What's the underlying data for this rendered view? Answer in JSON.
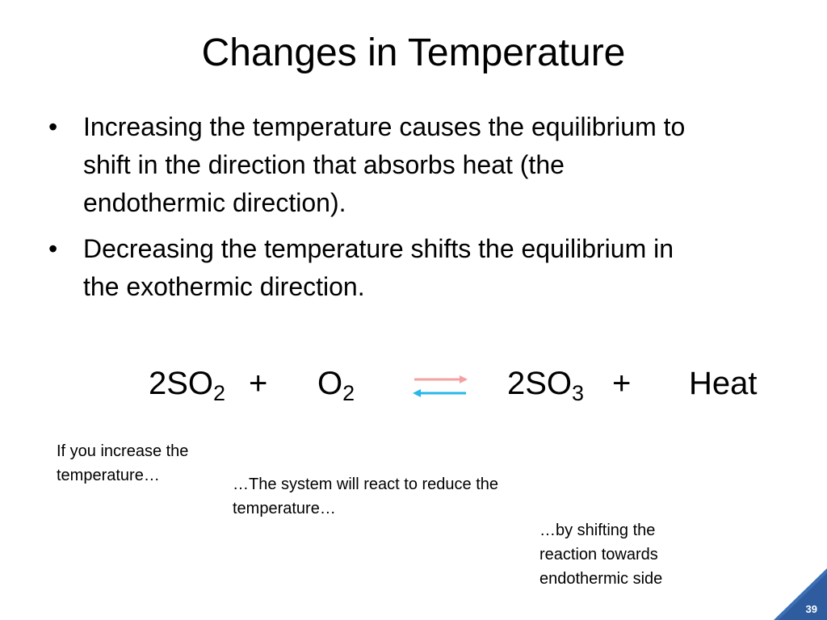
{
  "slide": {
    "title": "Changes in Temperature",
    "bullets": [
      "Increasing the temperature causes the equilibrium to shift in the direction that absorbs heat (the endothermic direction).",
      "Decreasing the temperature shifts the equilibrium in the exothermic direction."
    ],
    "equation": [
      {
        "text": "2SO",
        "sub": "2"
      },
      {
        "text": "+"
      },
      {
        "text": "O",
        "sub": "2"
      },
      {
        "text": "2SO",
        "sub": "3"
      },
      {
        "text": "+"
      },
      {
        "text": "Heat"
      }
    ],
    "notes": [
      "If you increase the temperature…",
      "…The system will react to reduce the temperature…",
      "…by shifting the reaction towards endothermic side"
    ],
    "page_number": "39"
  }
}
